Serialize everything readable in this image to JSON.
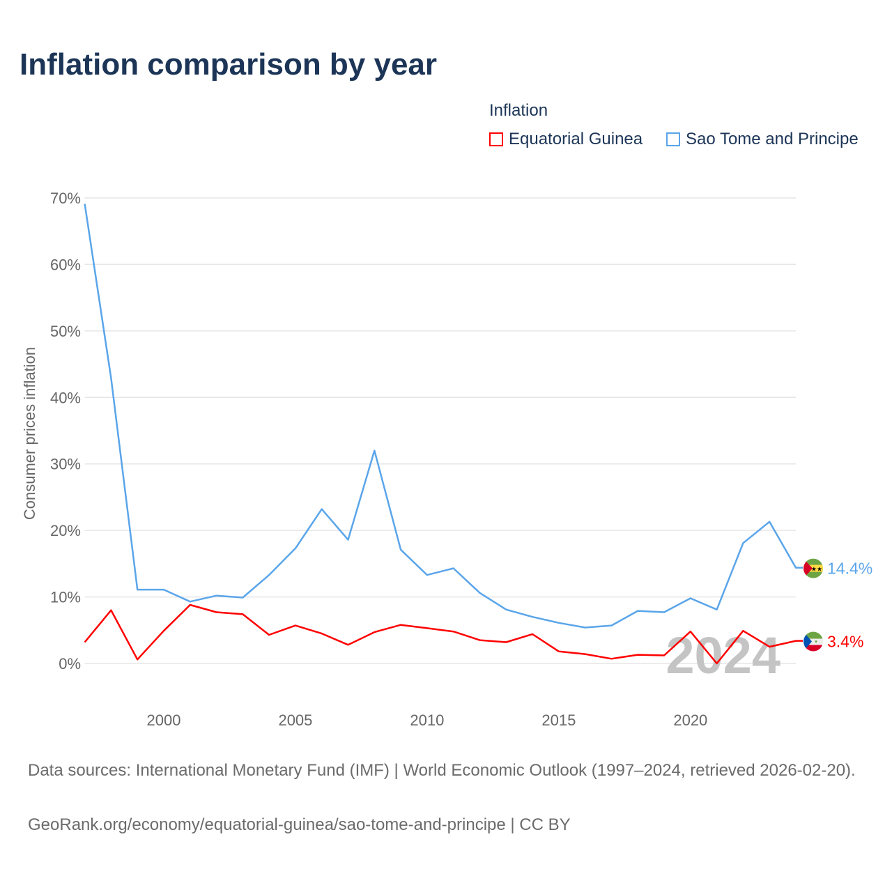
{
  "chart_data": {
    "type": "line",
    "title": "Inflation comparison by year",
    "legend_title": "Inflation",
    "legend_position": "top-right",
    "ylabel": "Consumer prices inflation",
    "xlabel": "",
    "ylim": [
      0,
      70
    ],
    "yticks": [
      0,
      10,
      20,
      30,
      40,
      50,
      60,
      70
    ],
    "ytick_labels": [
      "0%",
      "10%",
      "20%",
      "30%",
      "40%",
      "50%",
      "60%",
      "70%"
    ],
    "xticks": [
      2000,
      2005,
      2010,
      2015,
      2020
    ],
    "xtick_labels": [
      "2000",
      "2005",
      "2010",
      "2015",
      "2020"
    ],
    "xlim": [
      1997,
      2024
    ],
    "grid": true,
    "x": [
      1997,
      1998,
      1999,
      2000,
      2001,
      2002,
      2003,
      2004,
      2005,
      2006,
      2007,
      2008,
      2009,
      2010,
      2011,
      2012,
      2013,
      2014,
      2015,
      2016,
      2017,
      2018,
      2019,
      2020,
      2021,
      2022,
      2023,
      2024
    ],
    "series": [
      {
        "name": "Equatorial Guinea",
        "color": "#ff0000",
        "end_label": "3.4%",
        "values": [
          3.2,
          8.0,
          0.6,
          4.9,
          8.8,
          7.7,
          7.4,
          4.3,
          5.7,
          4.5,
          2.8,
          4.7,
          5.8,
          5.3,
          4.8,
          3.5,
          3.2,
          4.4,
          1.8,
          1.4,
          0.7,
          1.3,
          1.2,
          4.8,
          0.0,
          4.9,
          2.5,
          3.4
        ]
      },
      {
        "name": "Sao Tome and Principe",
        "color": "#5aa5ea",
        "end_label": "14.4%",
        "values": [
          69.1,
          42.9,
          11.1,
          11.1,
          9.3,
          10.2,
          9.9,
          13.3,
          17.3,
          23.2,
          18.6,
          32.0,
          17.1,
          13.3,
          14.3,
          10.6,
          8.1,
          7.0,
          6.1,
          5.4,
          5.7,
          7.9,
          7.7,
          9.8,
          8.1,
          18.1,
          21.3,
          14.4
        ]
      }
    ],
    "watermark_year": "2024"
  },
  "footer": {
    "sources": "Data sources: International Monetary Fund (IMF) | World Economic Outlook (1997–2024, retrieved 2026-02-20).",
    "url": "GeoRank.org/economy/equatorial-guinea/sao-tome-and-principe | CC BY"
  }
}
